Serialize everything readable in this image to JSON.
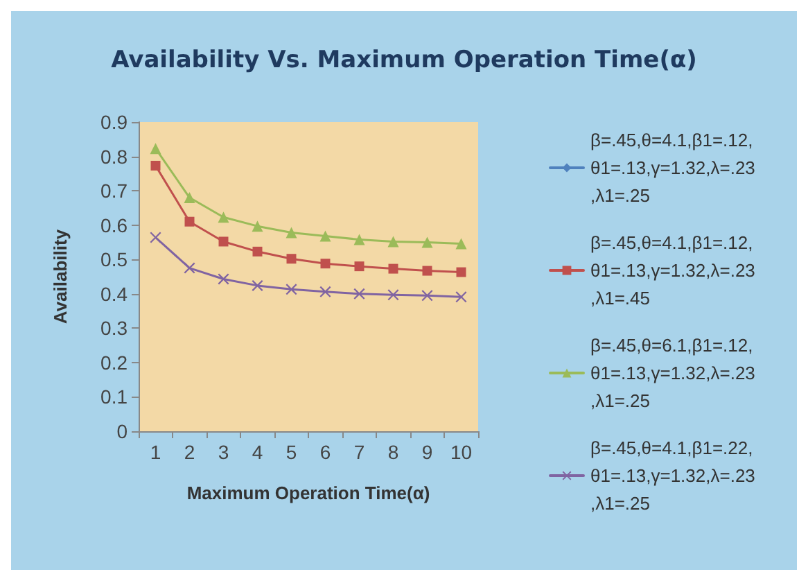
{
  "chart_data": {
    "type": "line",
    "title": "Availability Vs. Maximum Operation Time(α)",
    "xlabel": "Maximum Operation Time(α)",
    "ylabel": "Availability",
    "categories": [
      "1",
      "2",
      "3",
      "4",
      "5",
      "6",
      "7",
      "8",
      "9",
      "10"
    ],
    "ylim": [
      0,
      0.9
    ],
    "yticks": [
      0,
      0.1,
      0.2,
      0.3,
      0.4,
      0.5,
      0.6,
      0.7,
      0.8,
      0.9
    ],
    "grid": false,
    "legend": "right",
    "line_style": "solid",
    "series": [
      {
        "name": "β=.45,θ=4.1,β1=.12,θ1=.13,γ=1.32,λ=.23,λ1=.25",
        "color": "#4f81bd",
        "marker": "diamond",
        "values": [
          null,
          null,
          null,
          null,
          null,
          null,
          null,
          null,
          null,
          null
        ]
      },
      {
        "name": "β=.45,θ=4.1,β1=.12,θ1=.13,γ=1.32,λ=.23,λ1=.45",
        "color": "#c0504d",
        "marker": "square",
        "values": [
          0.773,
          0.61,
          0.552,
          0.523,
          0.502,
          0.488,
          0.48,
          0.473,
          0.467,
          0.463
        ]
      },
      {
        "name": "β=.45,θ=6.1,β1=.12,θ1=.13,γ=1.32,λ=.23,λ1=.25",
        "color": "#9bbb59",
        "marker": "triangle",
        "values": [
          0.823,
          0.68,
          0.623,
          0.597,
          0.578,
          0.568,
          0.558,
          0.552,
          0.55,
          0.546
        ]
      },
      {
        "name": "β=.45,θ=4.1,β1=.22,θ1=.13,γ=1.32,λ=.23,λ1=.25",
        "color": "#8064a2",
        "marker": "cross",
        "values": [
          0.564,
          0.475,
          0.443,
          0.424,
          0.413,
          0.406,
          0.4,
          0.397,
          0.395,
          0.391
        ]
      }
    ]
  }
}
